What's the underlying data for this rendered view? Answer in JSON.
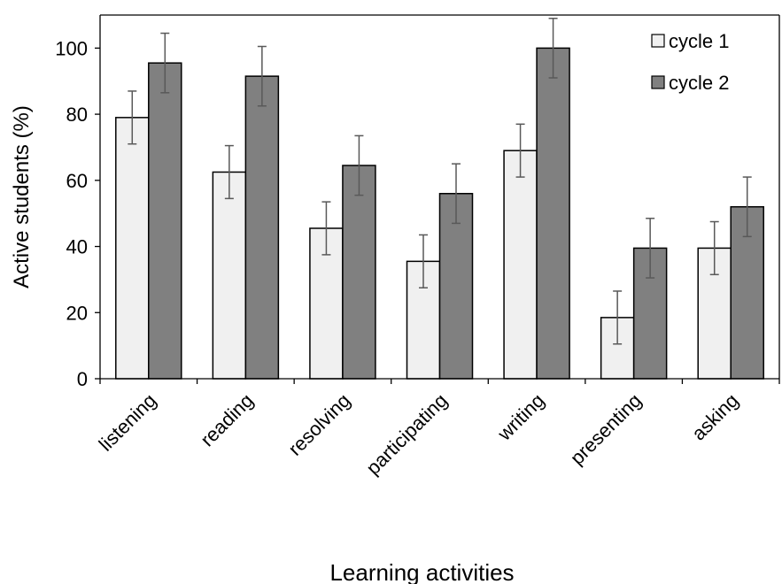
{
  "chart_data": {
    "type": "bar",
    "title": "",
    "xlabel": "Learning activities",
    "ylabel": "Active students (%)",
    "ylim": [
      0,
      110
    ],
    "yticks": [
      0,
      20,
      40,
      60,
      80,
      100
    ],
    "grid": false,
    "legend_position": "top-right",
    "error_bars": true,
    "categories": [
      "listening",
      "reading",
      "resolving",
      "participating",
      "writing",
      "presenting",
      "asking"
    ],
    "series": [
      {
        "name": "cycle 1",
        "color": "#f0f0f0",
        "values": [
          79,
          62.5,
          45.5,
          35.5,
          69,
          18.5,
          39.5
        ],
        "errors": [
          8,
          8,
          8,
          8,
          8,
          8,
          8
        ]
      },
      {
        "name": "cycle 2",
        "color": "#808080",
        "values": [
          95.5,
          91.5,
          64.5,
          56,
          100,
          39.5,
          52
        ],
        "errors": [
          9,
          9,
          9,
          9,
          9,
          9,
          9
        ]
      }
    ]
  }
}
